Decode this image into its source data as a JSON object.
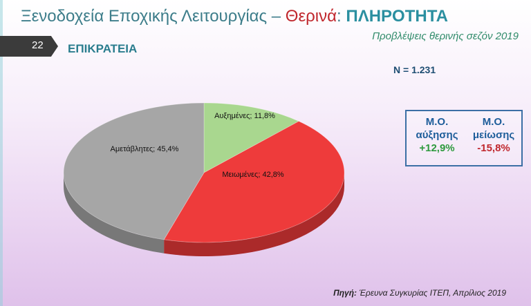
{
  "header": {
    "title_prefix": "Ξενοδοχεία Εποχικής Λειτουργίας – ",
    "title_season": "Θερινά",
    "title_sep": ": ",
    "title_topic": "ΠΛΗΡΟΤΗΤΑ",
    "subtitle": "Προβλέψεις θερινής σεζόν 2019",
    "slide_number": "22",
    "region": "ΕΠΙΚΡΑΤΕΙΑ"
  },
  "sample": "N = 1.231",
  "averages": {
    "increase_label_1": "Μ.Ο.",
    "increase_label_2": "αύξησης",
    "increase_value": "+12,9%",
    "decrease_label_1": "Μ.Ο.",
    "decrease_label_2": "μείωσης",
    "decrease_value": "-15,8%"
  },
  "source": {
    "label": "Πηγή:",
    "text": " Έρευνα Συγκυρίας ΙΤΕΠ, Απρίλιος 2019"
  },
  "chart_data": {
    "type": "pie",
    "title": "",
    "slices": [
      {
        "label": "Αυξημένες; 11,8%",
        "value": 11.8,
        "color": "#a9d78f"
      },
      {
        "label": "Μειωμένες; 42,8%",
        "value": 42.8,
        "color": "#ee3b3b"
      },
      {
        "label": "Αμετάβλητες; 45,4%",
        "value": 45.4,
        "color": "#a6a6a6"
      }
    ],
    "start": "top",
    "direction": "clockwise",
    "legend": "none",
    "style": "3d"
  }
}
